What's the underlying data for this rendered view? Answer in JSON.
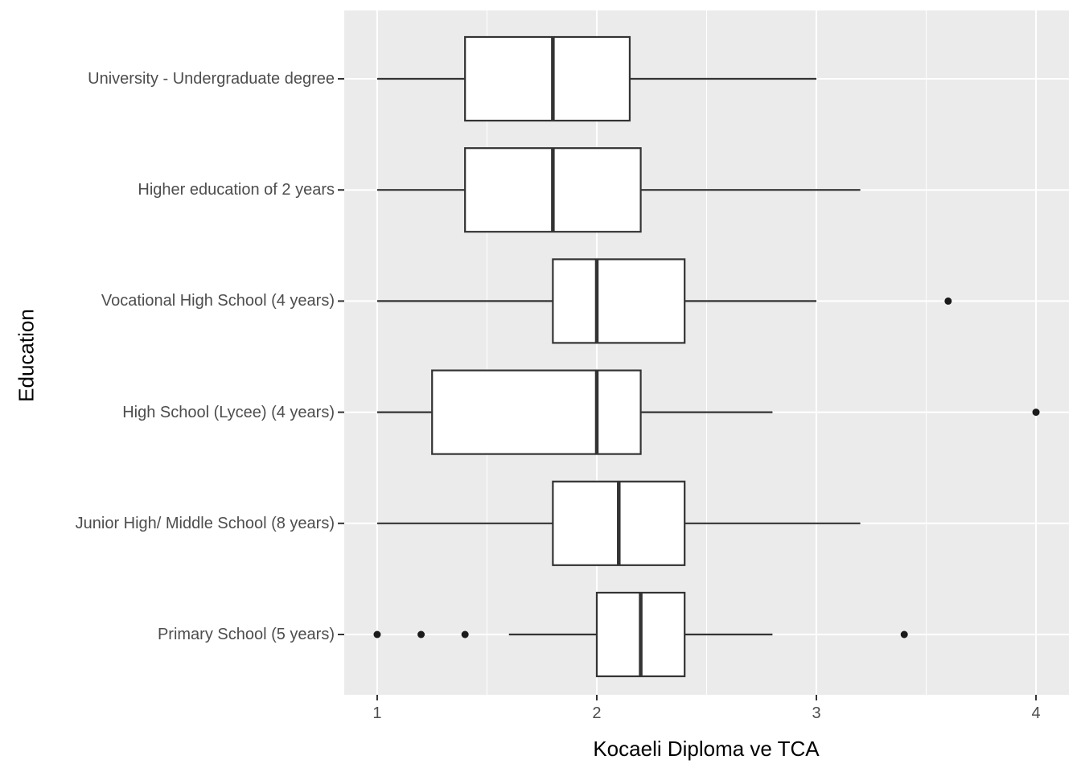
{
  "style": {
    "panel_bg": "#EBEBEB",
    "grid_color": "#FFFFFF",
    "box_stroke": "#333333",
    "box_fill": "#FFFFFF",
    "point_color": "#1B1B1B",
    "tick_mark_color": "#333333",
    "tick_label_color": "#4D4D4D",
    "title_color": "#000000"
  },
  "chart_data": {
    "type": "boxplot",
    "orientation": "horizontal",
    "title": "",
    "xlabel": "Kocaeli Diploma ve TCA",
    "ylabel": "Education",
    "xlim": [
      0.85,
      4.15
    ],
    "x_major_ticks": [
      1,
      2,
      3,
      4
    ],
    "x_minor_gridlines": [
      1.5,
      2.5,
      3.5
    ],
    "grid": "on",
    "legend": "none",
    "categories_top_to_bottom": [
      "University - Undergraduate degree",
      "Higher education of 2 years",
      "Vocational High School (4 years)",
      "High School (Lycee) (4 years)",
      "Junior High/ Middle School (8 years)",
      "Primary School (5 years)"
    ],
    "boxes": [
      {
        "label": "University - Undergraduate degree",
        "whisker_min": 1.0,
        "q1": 1.4,
        "median": 1.8,
        "q3": 2.15,
        "whisker_max": 3.0,
        "outliers": []
      },
      {
        "label": "Higher education of 2 years",
        "whisker_min": 1.0,
        "q1": 1.4,
        "median": 1.8,
        "q3": 2.2,
        "whisker_max": 3.2,
        "outliers": []
      },
      {
        "label": "Vocational High School (4 years)",
        "whisker_min": 1.0,
        "q1": 1.8,
        "median": 2.0,
        "q3": 2.4,
        "whisker_max": 3.0,
        "outliers": [
          3.6
        ]
      },
      {
        "label": "High School (Lycee) (4 years)",
        "whisker_min": 1.0,
        "q1": 1.25,
        "median": 2.0,
        "q3": 2.2,
        "whisker_max": 2.8,
        "outliers": [
          4.0
        ]
      },
      {
        "label": "Junior High/ Middle School (8 years)",
        "whisker_min": 1.0,
        "q1": 1.8,
        "median": 2.1,
        "q3": 2.4,
        "whisker_max": 3.2,
        "outliers": []
      },
      {
        "label": "Primary School (5 years)",
        "whisker_min": 1.6,
        "q1": 2.0,
        "median": 2.2,
        "q3": 2.4,
        "whisker_max": 2.8,
        "outliers": [
          1.0,
          1.2,
          1.4,
          3.4
        ]
      }
    ]
  }
}
